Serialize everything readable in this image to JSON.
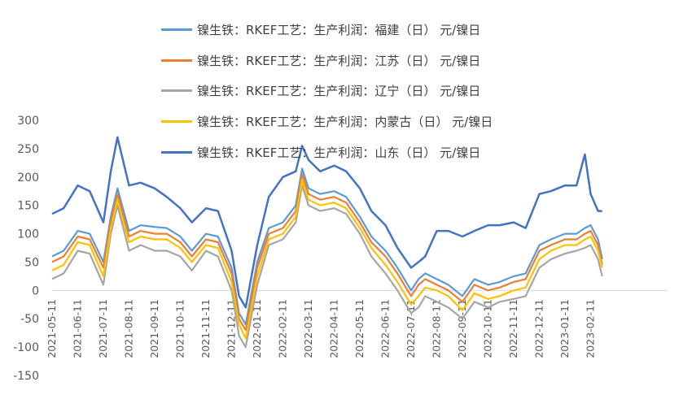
{
  "chart_data": {
    "type": "line",
    "title": "",
    "xlabel": "",
    "ylabel": "",
    "ylim": [
      -150,
      300
    ],
    "yticks": [
      300,
      250,
      200,
      150,
      100,
      50,
      0,
      -50,
      -100,
      -150
    ],
    "xticks": [
      "2021-05-11",
      "2021-06-11",
      "2021-07-11",
      "2021-08-11",
      "2021-09-11",
      "2021-10-11",
      "2021-11-11",
      "2021-12-11",
      "2022-01-11",
      "2022-02-11",
      "2022-03-11",
      "2022-04-11",
      "2022-05-11",
      "2022-06-11",
      "2022-07-11",
      "2022-08-11",
      "2022-09-11",
      "2022-10-11",
      "2022-11-11",
      "2022-12-11",
      "2023-01-11",
      "2023-02-11"
    ],
    "legend_position": "top",
    "grid": false,
    "x": [
      "2021-05-11",
      "2021-05-25",
      "2021-06-11",
      "2021-06-25",
      "2021-07-11",
      "2021-07-20",
      "2021-07-28",
      "2021-08-11",
      "2021-08-25",
      "2021-09-11",
      "2021-09-25",
      "2021-10-11",
      "2021-10-25",
      "2021-11-11",
      "2021-11-25",
      "2021-12-11",
      "2021-12-20",
      "2021-12-28",
      "2022-01-11",
      "2022-01-25",
      "2022-02-11",
      "2022-02-25",
      "2022-03-04",
      "2022-03-11",
      "2022-03-25",
      "2022-04-11",
      "2022-04-25",
      "2022-05-11",
      "2022-05-25",
      "2022-06-11",
      "2022-06-25",
      "2022-07-11",
      "2022-07-20",
      "2022-07-28",
      "2022-08-11",
      "2022-08-25",
      "2022-09-11",
      "2022-09-25",
      "2022-10-11",
      "2022-10-25",
      "2022-11-11",
      "2022-11-25",
      "2022-12-11",
      "2022-12-25",
      "2023-01-11",
      "2023-01-25",
      "2023-02-04",
      "2023-02-11",
      "2023-02-20",
      "2023-02-25"
    ],
    "series": [
      {
        "name": "镍生铁：RKEF工艺：生产利润：福建（日） 元/镍日",
        "color": "#5B9BD5",
        "values": [
          60,
          70,
          105,
          100,
          50,
          130,
          180,
          105,
          115,
          112,
          110,
          95,
          70,
          100,
          95,
          40,
          -40,
          -60,
          50,
          110,
          120,
          150,
          215,
          180,
          170,
          175,
          165,
          130,
          95,
          70,
          40,
          0,
          20,
          30,
          20,
          10,
          -10,
          20,
          10,
          15,
          25,
          30,
          80,
          90,
          100,
          100,
          110,
          115,
          90,
          55
        ]
      },
      {
        "name": "镍生铁：RKEF工艺：生产利润：江苏（日） 元/镍日",
        "color": "#ED7D31",
        "values": [
          50,
          60,
          95,
          90,
          40,
          120,
          170,
          95,
          105,
          100,
          100,
          85,
          60,
          90,
          85,
          30,
          -50,
          -70,
          40,
          100,
          110,
          140,
          205,
          170,
          160,
          165,
          155,
          120,
          85,
          60,
          30,
          -10,
          10,
          20,
          10,
          0,
          -20,
          10,
          0,
          5,
          15,
          20,
          70,
          80,
          90,
          90,
          100,
          105,
          80,
          45
        ]
      },
      {
        "name": "镍生铁：RKEF工艺：生产利润：辽宁（日） 元/镍日",
        "color": "#A5A5A5",
        "values": [
          20,
          30,
          70,
          65,
          10,
          100,
          150,
          70,
          80,
          70,
          70,
          60,
          35,
          70,
          60,
          0,
          -80,
          -100,
          10,
          80,
          90,
          120,
          185,
          150,
          140,
          145,
          135,
          100,
          60,
          30,
          0,
          -40,
          -30,
          -10,
          -20,
          -30,
          -50,
          -20,
          -30,
          -20,
          -15,
          -10,
          40,
          55,
          65,
          70,
          75,
          80,
          55,
          25
        ]
      },
      {
        "name": "镍生铁：RKEF工艺：生产利润：内蒙古（日） 元/镍日",
        "color": "#FFC000",
        "values": [
          35,
          45,
          85,
          80,
          25,
          110,
          160,
          85,
          95,
          90,
          90,
          75,
          50,
          80,
          75,
          15,
          -60,
          -85,
          25,
          90,
          100,
          130,
          195,
          160,
          150,
          155,
          145,
          110,
          75,
          45,
          15,
          -25,
          -10,
          5,
          0,
          -10,
          -35,
          -5,
          -15,
          -10,
          0,
          5,
          55,
          70,
          80,
          80,
          90,
          95,
          70,
          40
        ]
      },
      {
        "name": "镍生铁：RKEF工艺：生产利润：山东（日） 元/镍日",
        "color": "#4472C4",
        "values": [
          135,
          145,
          185,
          175,
          120,
          210,
          270,
          185,
          190,
          180,
          165,
          145,
          120,
          145,
          140,
          70,
          -10,
          -30,
          80,
          165,
          200,
          210,
          255,
          230,
          210,
          220,
          210,
          180,
          140,
          115,
          75,
          40,
          50,
          60,
          105,
          105,
          95,
          105,
          115,
          115,
          120,
          110,
          170,
          175,
          185,
          185,
          240,
          170,
          140,
          140
        ]
      }
    ]
  }
}
